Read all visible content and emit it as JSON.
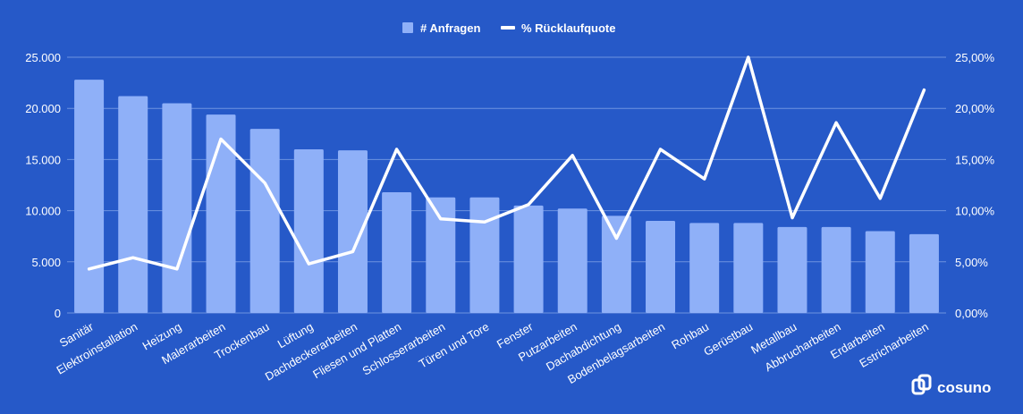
{
  "colors": {
    "background": "#2659C8",
    "bar": "#8FB0F8",
    "line": "#FFFFFF",
    "grid": "#6E93E0",
    "text": "#FFFFFF"
  },
  "brand": {
    "name": "cosuno",
    "icon": "cosuno-logo-icon"
  },
  "chart_data": {
    "type": "bar",
    "categories": [
      "Sanitär",
      "Elektroinstallation",
      "Heizung",
      "Malerarbeiten",
      "Trockenbau",
      "Lüftung",
      "Dachdeckerarbeiten",
      "Fliesen und Platten",
      "Schlosserarbeiten",
      "Türen und Tore",
      "Fenster",
      "Putzarbeiten",
      "Dachabdichtung",
      "Bodenbelagsarbeiten",
      "Rohbau",
      "Gerüstbau",
      "Metallbau",
      "Abbrucharbeiten",
      "Erdarbeiten",
      "Estricharbeiten"
    ],
    "series": [
      {
        "name": "# Anfragen",
        "type": "bar",
        "axis": "left",
        "values": [
          22800,
          21200,
          20500,
          19400,
          18000,
          16000,
          15900,
          11800,
          11300,
          11300,
          10500,
          10200,
          9500,
          9000,
          8800,
          8800,
          8400,
          8400,
          8000,
          7700
        ]
      },
      {
        "name": "% Rücklaufquote",
        "type": "line",
        "axis": "right",
        "values": [
          4.3,
          5.4,
          4.3,
          17.0,
          12.7,
          4.8,
          6.0,
          16.0,
          9.2,
          8.9,
          10.6,
          15.4,
          7.3,
          16.0,
          13.1,
          25.0,
          9.3,
          18.6,
          11.2,
          21.8
        ]
      }
    ],
    "ylim_left": [
      0,
      25000
    ],
    "ylim_right": [
      0,
      25
    ],
    "left_ticks": [
      "0",
      "5.000",
      "10.000",
      "15.000",
      "20.000",
      "25.000"
    ],
    "right_ticks": [
      "0,00%",
      "5,00%",
      "10,00%",
      "15,00%",
      "20,00%",
      "25,00%"
    ],
    "grid": true,
    "legend_position": "top-center"
  }
}
